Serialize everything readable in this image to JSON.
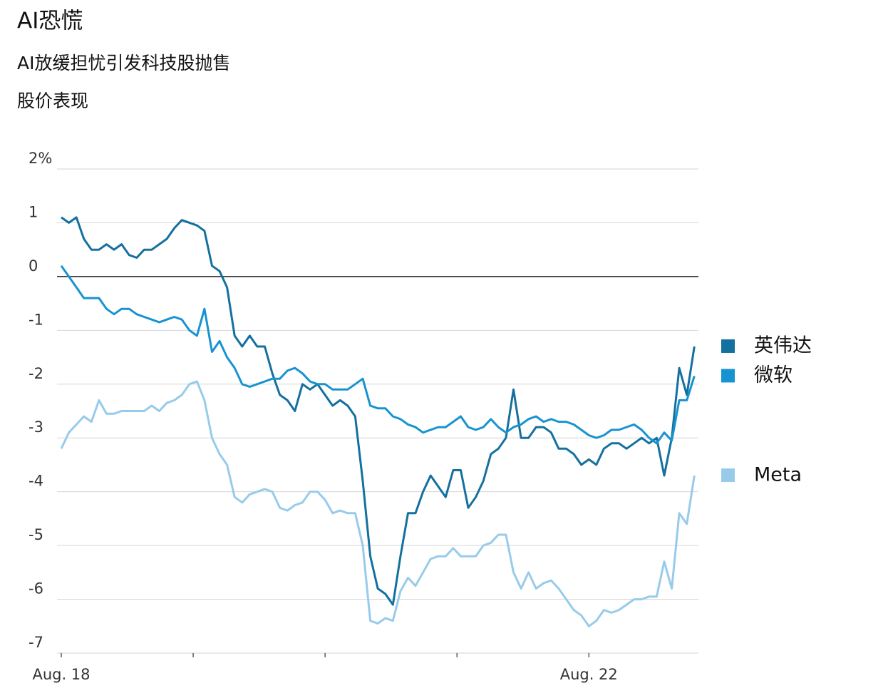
{
  "chart_data": {
    "type": "line",
    "title": "AI恐慌",
    "subtitle": "AI放缓担忧引发科技股抛售",
    "y_label": "股价表现",
    "categories": [
      "Aug. 18",
      null,
      null,
      null,
      null,
      null,
      null,
      null,
      null,
      null,
      null,
      null,
      null,
      null,
      null,
      null,
      null,
      null,
      null,
      null,
      null,
      null,
      null,
      null,
      null,
      null,
      null,
      null,
      null,
      null,
      null,
      null,
      null,
      null,
      null,
      null,
      null,
      null,
      null,
      null,
      null,
      null,
      null,
      null,
      null,
      null,
      null,
      null,
      null,
      null,
      null,
      null,
      null,
      null,
      null,
      null,
      null,
      null,
      null,
      null,
      null,
      null,
      null,
      null,
      null,
      null,
      null,
      null,
      null,
      null,
      "Aug. 22",
      null,
      null,
      null,
      null,
      null,
      null,
      null,
      null,
      null,
      null,
      null,
      null,
      null,
      null
    ],
    "ylim": [
      -7,
      2
    ],
    "yticks": [
      {
        "value": 2,
        "label": "2%"
      },
      1,
      0,
      -1,
      -2,
      -3,
      -4,
      -5,
      -6,
      -7
    ],
    "grid": true,
    "series": [
      {
        "name": "英伟达",
        "color": "#14709f",
        "values": [
          1.1,
          1.0,
          1.1,
          0.7,
          0.5,
          0.5,
          0.6,
          0.5,
          0.6,
          0.4,
          0.35,
          0.5,
          0.5,
          0.6,
          0.7,
          0.9,
          1.05,
          1.0,
          0.95,
          0.85,
          0.2,
          0.1,
          -0.2,
          -1.1,
          -1.3,
          -1.1,
          -1.3,
          -1.3,
          -1.8,
          -2.2,
          -2.3,
          -2.5,
          -2.0,
          -2.1,
          -2.0,
          -2.2,
          -2.4,
          -2.3,
          -2.4,
          -2.6,
          -3.8,
          -5.2,
          -5.8,
          -5.9,
          -6.1,
          -5.2,
          -4.4,
          -4.4,
          -4.0,
          -3.7,
          -3.9,
          -4.1,
          -3.6,
          -3.6,
          -4.3,
          -4.1,
          -3.8,
          -3.3,
          -3.2,
          -3.0,
          -2.1,
          -3.0,
          -3.0,
          -2.8,
          -2.8,
          -2.9,
          -3.2,
          -3.2,
          -3.3,
          -3.5,
          -3.4,
          -3.5,
          -3.2,
          -3.1,
          -3.1,
          -3.2,
          -3.1,
          -3.0,
          -3.1,
          -3.0,
          -3.7,
          -3.0,
          -1.7,
          -2.2,
          -1.3
        ]
      },
      {
        "name": "微软",
        "color": "#1793d1",
        "values": [
          0.2,
          0,
          -0.2,
          -0.4,
          -0.4,
          -0.4,
          -0.6,
          -0.7,
          -0.6,
          -0.6,
          -0.7,
          -0.75,
          -0.8,
          -0.85,
          -0.8,
          -0.75,
          -0.8,
          -1.0,
          -1.1,
          -0.6,
          -1.4,
          -1.2,
          -1.5,
          -1.7,
          -2.0,
          -2.05,
          -2.0,
          -1.95,
          -1.9,
          -1.9,
          -1.75,
          -1.7,
          -1.8,
          -1.95,
          -2.0,
          -2.0,
          -2.1,
          -2.1,
          -2.1,
          -2.0,
          -1.9,
          -2.4,
          -2.45,
          -2.45,
          -2.6,
          -2.65,
          -2.75,
          -2.8,
          -2.9,
          -2.85,
          -2.8,
          -2.8,
          -2.7,
          -2.6,
          -2.8,
          -2.85,
          -2.8,
          -2.65,
          -2.8,
          -2.9,
          -2.8,
          -2.75,
          -2.65,
          -2.6,
          -2.7,
          -2.65,
          -2.7,
          -2.7,
          -2.75,
          -2.85,
          -2.95,
          -3.0,
          -2.95,
          -2.85,
          -2.85,
          -2.8,
          -2.75,
          -2.85,
          -3.0,
          -3.1,
          -2.9,
          -3.05,
          -2.3,
          -2.3,
          -1.85
        ]
      },
      {
        "name": "Meta",
        "color": "#98cbea",
        "values": [
          -3.2,
          -2.9,
          -2.75,
          -2.6,
          -2.7,
          -2.3,
          -2.55,
          -2.55,
          -2.5,
          -2.5,
          -2.5,
          -2.5,
          -2.4,
          -2.5,
          -2.35,
          -2.3,
          -2.2,
          -2.0,
          -1.95,
          -2.3,
          -3.0,
          -3.3,
          -3.5,
          -4.1,
          -4.2,
          -4.05,
          -4.0,
          -3.95,
          -4.0,
          -4.3,
          -4.35,
          -4.25,
          -4.2,
          -4.0,
          -4.0,
          -4.15,
          -4.4,
          -4.35,
          -4.4,
          -4.4,
          -5.0,
          -6.4,
          -6.45,
          -6.35,
          -6.4,
          -5.85,
          -5.6,
          -5.75,
          -5.5,
          -5.25,
          -5.2,
          -5.2,
          -5.05,
          -5.2,
          -5.2,
          -5.2,
          -5.0,
          -4.95,
          -4.8,
          -4.8,
          -5.5,
          -5.8,
          -5.5,
          -5.8,
          -5.7,
          -5.65,
          -5.8,
          -6.0,
          -6.2,
          -6.3,
          -6.5,
          -6.4,
          -6.2,
          -6.25,
          -6.2,
          -6.1,
          -6.0,
          -6.0,
          -5.95,
          -5.95,
          -5.3,
          -5.8,
          -4.4,
          -4.6,
          -3.7
        ]
      }
    ]
  }
}
